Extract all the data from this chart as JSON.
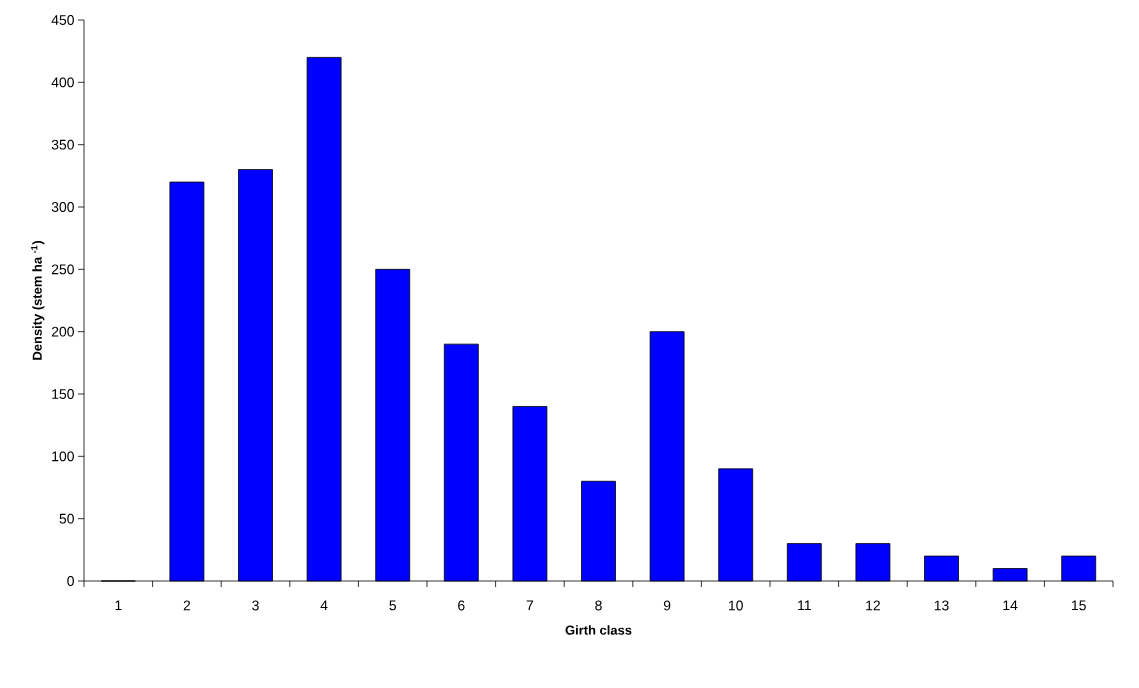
{
  "chart_data": {
    "type": "bar",
    "xlabel": "Girth class",
    "ylabel": "Density (stem ha $^{-1}$)",
    "categories": [
      "1",
      "2",
      "3",
      "4",
      "5",
      "6",
      "7",
      "8",
      "9",
      "10",
      "11",
      "12",
      "13",
      "14",
      "15"
    ],
    "values": [
      0,
      320,
      330,
      420,
      250,
      190,
      140,
      80,
      200,
      90,
      30,
      30,
      20,
      10,
      20
    ],
    "color": "#0000ff",
    "ylim": [
      0,
      450
    ],
    "yticks": [
      0,
      50,
      100,
      150,
      200,
      250,
      300,
      350,
      400,
      450
    ]
  }
}
